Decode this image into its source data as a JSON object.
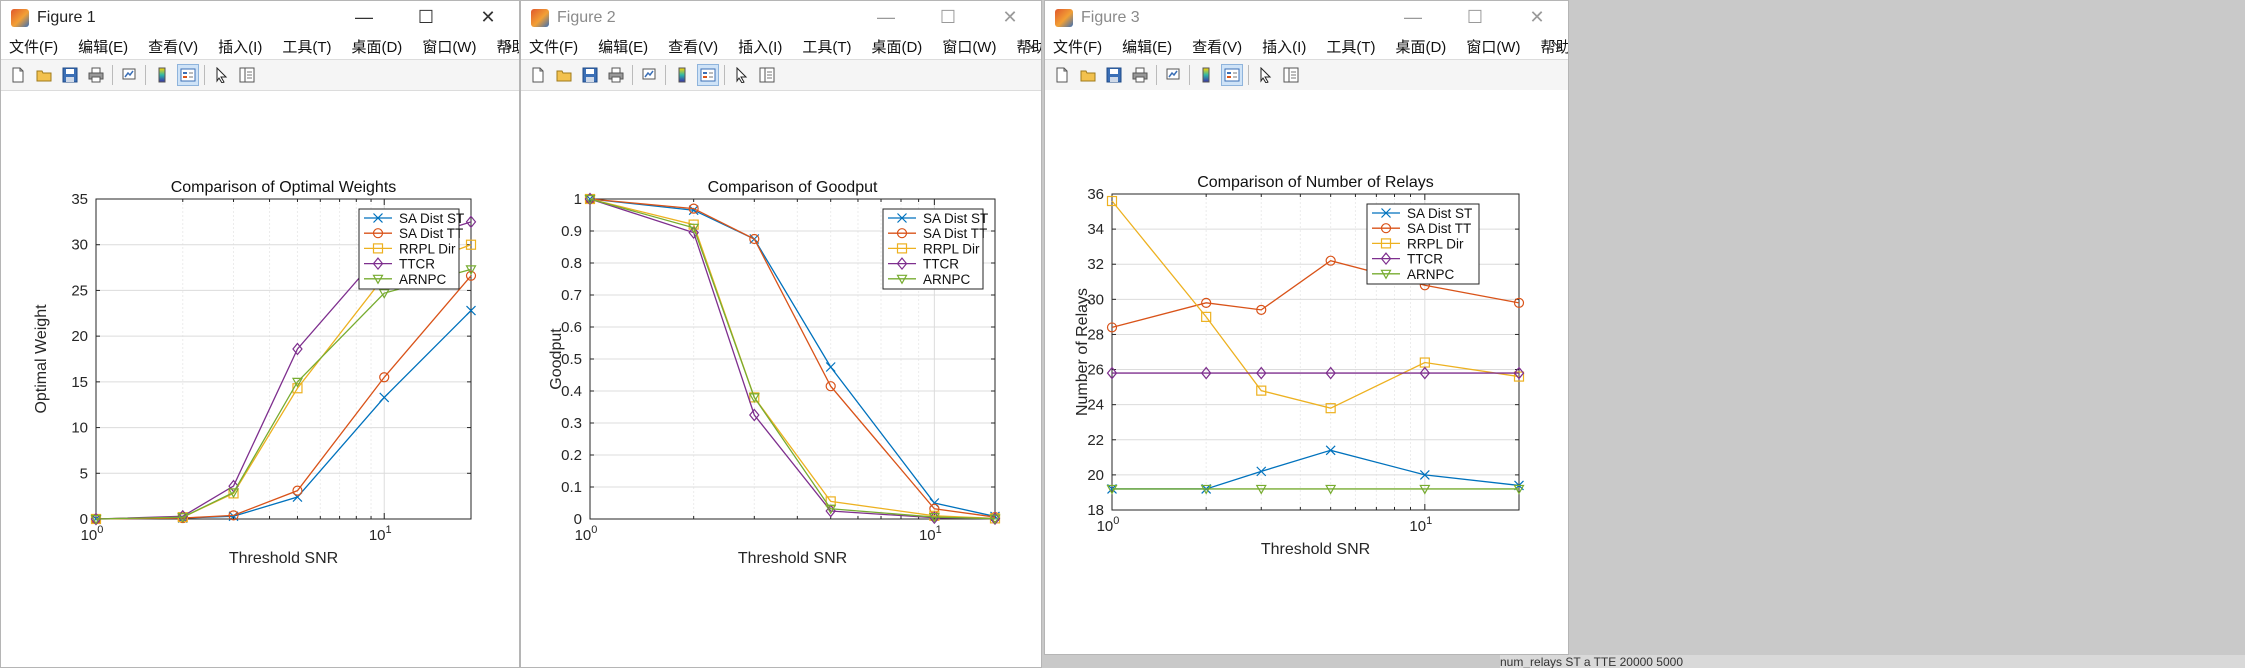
{
  "menus": [
    "文件(F)",
    "编辑(E)",
    "查看(V)",
    "插入(I)",
    "工具(T)",
    "桌面(D)",
    "窗口(W)",
    "帮助(H)"
  ],
  "toolbar_icons": [
    "new-figure-icon",
    "open-file-icon",
    "save-icon",
    "print-icon",
    "link-plot-icon",
    "colorbar-icon",
    "legend-icon",
    "pointer-icon",
    "property-inspector-icon"
  ],
  "window_controls": {
    "minimize": "—",
    "maximize": "☐",
    "close": "✕"
  },
  "series_styles": [
    {
      "name": "SA Dist ST",
      "color": "#0072BD",
      "marker": "x"
    },
    {
      "name": "SA Dist TT",
      "color": "#D95319",
      "marker": "o"
    },
    {
      "name": "RRPL Dir",
      "color": "#EDB120",
      "marker": "s"
    },
    {
      "name": "TTCR",
      "color": "#7E2F8E",
      "marker": "d"
    },
    {
      "name": "ARNPC",
      "color": "#77AC30",
      "marker": "v"
    }
  ],
  "windows": [
    {
      "title": "Figure 1",
      "active": true,
      "chart_data": {
        "type": "line",
        "title": "Comparison of Optimal Weights",
        "xlabel": "Threshold SNR",
        "ylabel": "Optimal Weight",
        "xscale": "log",
        "xlim": [
          1,
          20
        ],
        "ylim": [
          0,
          35
        ],
        "x_ticks": [
          {
            "v": 1,
            "m": "10",
            "e": "0"
          },
          {
            "v": 10,
            "m": "10",
            "e": "1"
          }
        ],
        "y_ticks": [
          0,
          5,
          10,
          15,
          20,
          25,
          30,
          35
        ],
        "y_tick_labels": [
          "0",
          "5",
          "10",
          "15",
          "20",
          "25",
          "30",
          "35"
        ],
        "grid": true,
        "legend_position": "top-right",
        "x": [
          1,
          2,
          3,
          5,
          10,
          20
        ],
        "series": [
          {
            "name": "SA Dist ST",
            "values": [
              0,
              0.1,
              0.3,
              2.4,
              13.3,
              22.8
            ]
          },
          {
            "name": "SA Dist TT",
            "values": [
              0,
              0.1,
              0.4,
              3.1,
              15.5,
              26.6
            ]
          },
          {
            "name": "RRPL Dir",
            "values": [
              0,
              0.2,
              2.8,
              14.3,
              26.5,
              30.0
            ]
          },
          {
            "name": "TTCR",
            "values": [
              0,
              0.3,
              3.6,
              18.6,
              29.5,
              32.5
            ]
          },
          {
            "name": "ARNPC",
            "values": [
              0,
              0.2,
              2.9,
              15.0,
              24.7,
              27.3
            ]
          }
        ]
      }
    },
    {
      "title": "Figure 2",
      "active": false,
      "chart_data": {
        "type": "line",
        "title": "Comparison of Goodput",
        "xlabel": "Threshold SNR",
        "ylabel": "Goodput",
        "xscale": "log",
        "xlim": [
          1,
          15
        ],
        "ylim": [
          0,
          1
        ],
        "x_ticks": [
          {
            "v": 1,
            "m": "10",
            "e": "0"
          },
          {
            "v": 10,
            "m": "10",
            "e": "1"
          }
        ],
        "y_ticks": [
          0,
          0.1,
          0.2,
          0.3,
          0.4,
          0.5,
          0.6,
          0.7,
          0.8,
          0.9,
          1
        ],
        "y_tick_labels": [
          "0",
          "0.1",
          "0.2",
          "0.3",
          "0.4",
          "0.5",
          "0.6",
          "0.7",
          "0.8",
          "0.9",
          "1"
        ],
        "grid": true,
        "legend_position": "top-right",
        "x": [
          1,
          2,
          3,
          5,
          10,
          15
        ],
        "series": [
          {
            "name": "SA Dist ST",
            "values": [
              1.0,
              0.965,
              0.875,
              0.475,
              0.05,
              0.008
            ]
          },
          {
            "name": "SA Dist TT",
            "values": [
              1.0,
              0.97,
              0.875,
              0.415,
              0.032,
              0.006
            ]
          },
          {
            "name": "RRPL Dir",
            "values": [
              1.0,
              0.92,
              0.38,
              0.055,
              0.01,
              0.002
            ]
          },
          {
            "name": "TTCR",
            "values": [
              1.0,
              0.895,
              0.325,
              0.025,
              0.004,
              0.001
            ]
          },
          {
            "name": "ARNPC",
            "values": [
              1.0,
              0.91,
              0.38,
              0.032,
              0.006,
              0.001
            ]
          }
        ]
      }
    },
    {
      "title": "Figure 3",
      "active": false,
      "chart_data": {
        "type": "line",
        "title": "Comparison of Number of Relays",
        "xlabel": "Threshold SNR",
        "ylabel": "Number of Relays",
        "xscale": "log",
        "xlim": [
          1,
          20
        ],
        "ylim": [
          18,
          36
        ],
        "x_ticks": [
          {
            "v": 1,
            "m": "10",
            "e": "0"
          },
          {
            "v": 10,
            "m": "10",
            "e": "1"
          }
        ],
        "y_ticks": [
          18,
          20,
          22,
          24,
          26,
          28,
          30,
          32,
          34,
          36
        ],
        "y_tick_labels": [
          "18",
          "20",
          "22",
          "24",
          "26",
          "28",
          "30",
          "32",
          "34",
          "36"
        ],
        "grid": true,
        "legend_position": "top-right",
        "x": [
          1,
          2,
          3,
          5,
          10,
          20
        ],
        "series": [
          {
            "name": "SA Dist ST",
            "values": [
              19.2,
              19.2,
              20.2,
              21.4,
              20.0,
              19.4
            ]
          },
          {
            "name": "SA Dist TT",
            "values": [
              28.4,
              29.8,
              29.4,
              32.2,
              30.8,
              29.8
            ]
          },
          {
            "name": "RRPL Dir",
            "values": [
              35.6,
              29.0,
              24.8,
              23.8,
              26.4,
              25.6
            ]
          },
          {
            "name": "TTCR",
            "values": [
              25.8,
              25.8,
              25.8,
              25.8,
              25.8,
              25.8
            ]
          },
          {
            "name": "ARNPC",
            "values": [
              19.2,
              19.2,
              19.2,
              19.2,
              19.2,
              19.2
            ]
          }
        ]
      }
    }
  ],
  "background_text": "num_relays ST a    TTE 20000 5000"
}
